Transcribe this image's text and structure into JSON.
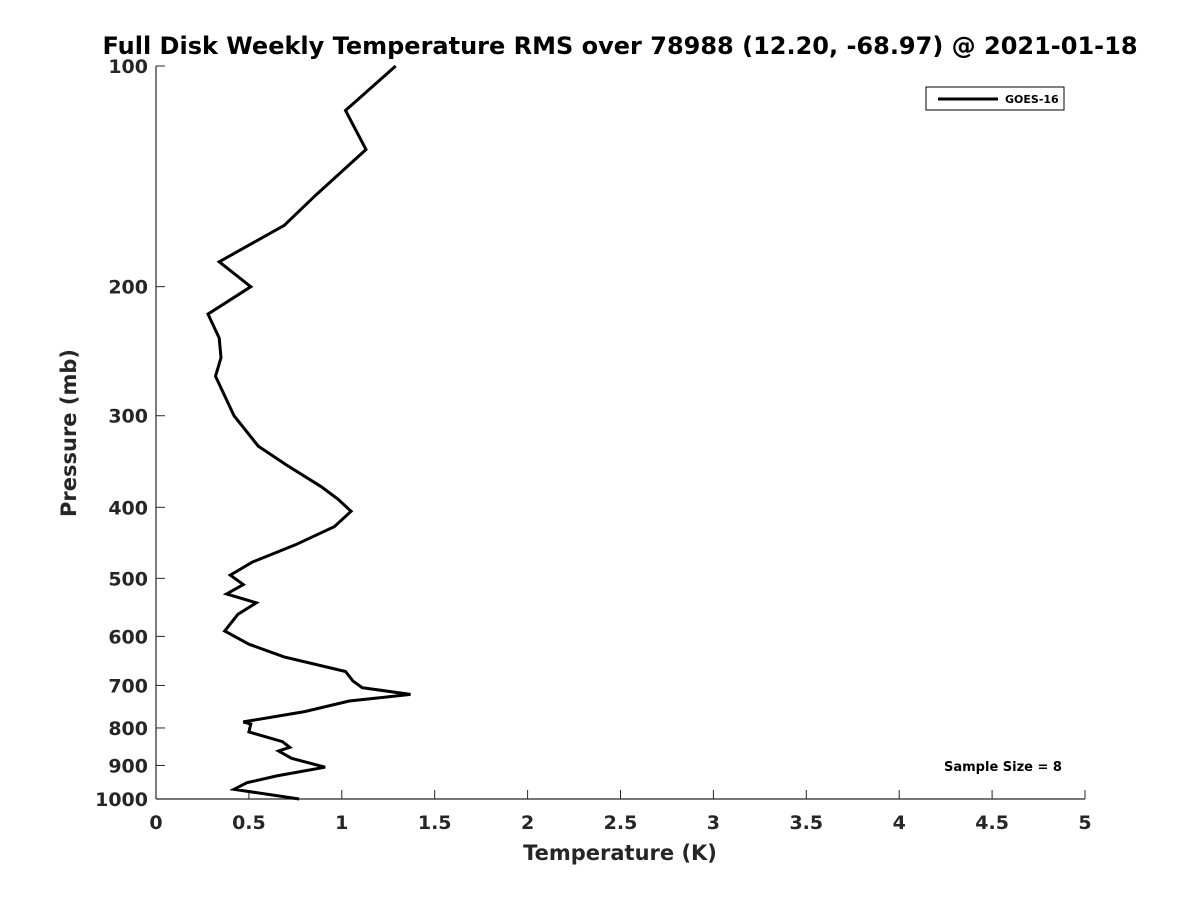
{
  "chart_data": {
    "type": "line",
    "title": "Full Disk Weekly Temperature RMS over 78988 (12.20, -68.97) @ 2021-01-18",
    "xlabel": "Temperature (K)",
    "ylabel": "Pressure (mb)",
    "xlim": [
      0,
      5
    ],
    "ylim": [
      100,
      1000
    ],
    "yscale": "log",
    "y_reversed": true,
    "grid": false,
    "legend_position": "top-right",
    "xticks": [
      0,
      0.5,
      1,
      1.5,
      2,
      2.5,
      3,
      3.5,
      4,
      4.5,
      5
    ],
    "xtick_labels": [
      "0",
      "0.5",
      "1",
      "1.5",
      "2",
      "2.5",
      "3",
      "3.5",
      "4",
      "4.5",
      "5"
    ],
    "yticks": [
      100,
      200,
      300,
      400,
      500,
      600,
      700,
      800,
      900,
      1000
    ],
    "ytick_labels": [
      "100",
      "200",
      "300",
      "400",
      "500",
      "600",
      "700",
      "800",
      "900",
      "1000"
    ],
    "annotation": "Sample Size = 8",
    "series": [
      {
        "name": "GOES-16",
        "color": "#000000",
        "x": [
          1.29,
          1.02,
          1.13,
          0.86,
          0.69,
          0.34,
          0.51,
          0.28,
          0.34,
          0.35,
          0.32,
          0.42,
          0.55,
          0.7,
          0.89,
          0.98,
          1.05,
          0.96,
          0.75,
          0.52,
          0.4,
          0.47,
          0.38,
          0.54,
          0.44,
          0.37,
          0.5,
          0.69,
          1.02,
          1.06,
          1.11,
          1.37,
          1.04,
          0.8,
          0.47,
          0.51,
          0.5,
          0.68,
          0.72,
          0.66,
          0.73,
          0.91,
          0.65,
          0.49,
          0.42,
          0.77
        ],
        "y": [
          100,
          115,
          130,
          150,
          165,
          185,
          200,
          218,
          235,
          250,
          265,
          300,
          330,
          350,
          375,
          390,
          405,
          425,
          450,
          475,
          495,
          510,
          525,
          540,
          560,
          590,
          615,
          640,
          670,
          690,
          705,
          720,
          735,
          760,
          785,
          790,
          810,
          835,
          850,
          860,
          880,
          905,
          930,
          950,
          970,
          1000
        ]
      }
    ]
  }
}
